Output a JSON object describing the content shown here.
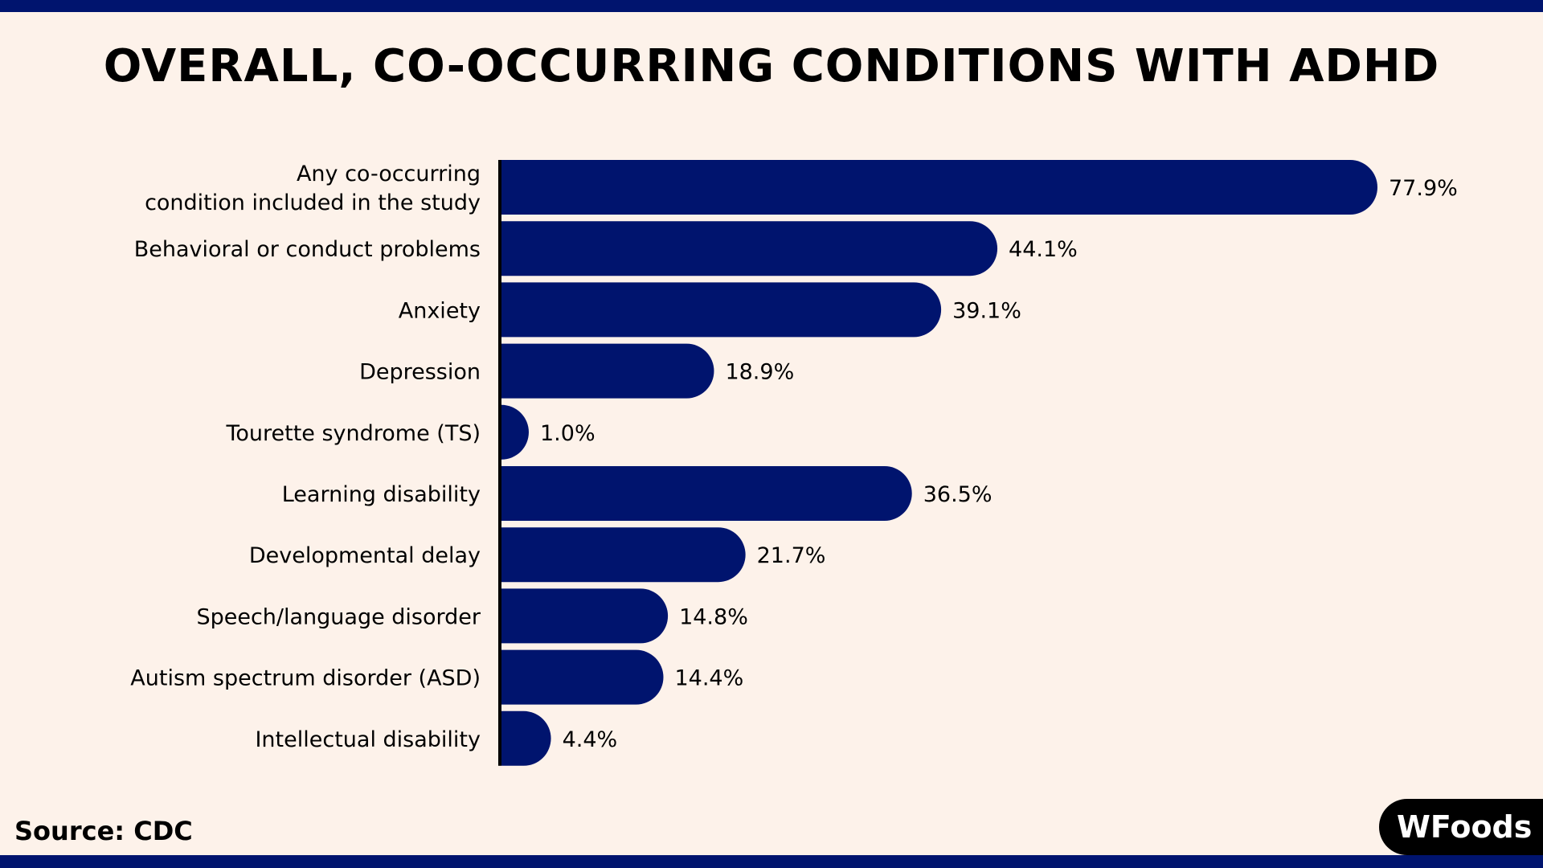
{
  "title": "OVERALL, CO-OCCURRING CONDITIONS WITH ADHD",
  "source": "Source: CDC",
  "logo_text": "WFoods",
  "colors": {
    "bar": "#00146e",
    "background": "#fdf2ea",
    "axis": "#000000"
  },
  "chart_data": {
    "type": "bar",
    "orientation": "horizontal",
    "title": "OVERALL, CO-OCCURRING CONDITIONS WITH ADHD",
    "categories": [
      [
        "Any co-occurring",
        "condition included in the study"
      ],
      [
        "Behavioral or conduct problems"
      ],
      [
        "Anxiety"
      ],
      [
        "Depression"
      ],
      [
        "Tourette syndrome (TS)"
      ],
      [
        "Learning disability"
      ],
      [
        "Developmental delay"
      ],
      [
        "Speech/language disorder"
      ],
      [
        "Autism spectrum disorder (ASD)"
      ],
      [
        "Intellectual disability"
      ]
    ],
    "values": [
      77.9,
      44.1,
      39.1,
      18.9,
      1.0,
      36.5,
      21.7,
      14.8,
      14.4,
      4.4
    ],
    "value_labels": [
      "77.9%",
      "44.1%",
      "39.1%",
      "18.9%",
      "1.0%",
      "36.5%",
      "21.7%",
      "14.8%",
      "14.4%",
      "4.4%"
    ],
    "unit": "%",
    "grid": false,
    "legend": "none"
  }
}
